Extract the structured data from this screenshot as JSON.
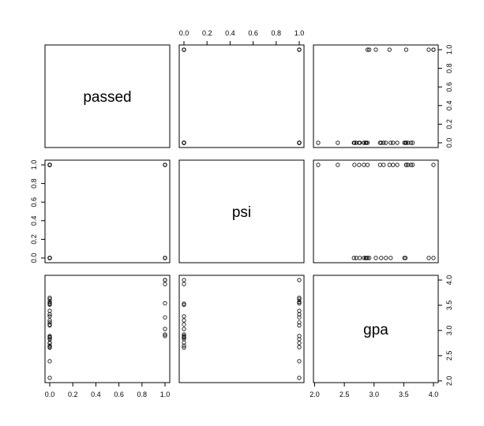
{
  "chart_data": {
    "type": "scatter",
    "kind": "pairs-matrix",
    "variables": [
      "passed",
      "psi",
      "gpa"
    ],
    "ranges": {
      "passed": [
        0,
        1
      ],
      "psi": [
        0,
        1
      ],
      "gpa": [
        2.06,
        4.0
      ]
    },
    "ticks": {
      "passed": [
        "0.0",
        "0.2",
        "0.4",
        "0.6",
        "0.8",
        "1.0"
      ],
      "psi": [
        "0.0",
        "0.2",
        "0.4",
        "0.6",
        "0.8",
        "1.0"
      ],
      "gpa": [
        "2.0",
        "2.5",
        "3.0",
        "3.5",
        "4.0"
      ]
    },
    "tick_values": {
      "passed": [
        0,
        0.2,
        0.4,
        0.6,
        0.8,
        1.0
      ],
      "psi": [
        0,
        0.2,
        0.4,
        0.6,
        0.8,
        1.0
      ],
      "gpa": [
        2.0,
        2.5,
        3.0,
        3.5,
        4.0
      ]
    },
    "observations": {
      "passed": [
        0,
        0,
        0,
        0,
        0,
        0,
        0,
        0,
        0,
        0,
        0,
        0,
        0,
        0,
        0,
        0,
        0,
        0,
        0,
        0,
        0,
        0,
        0,
        0,
        0,
        1,
        1,
        1,
        1,
        1,
        1,
        1,
        1
      ],
      "psi": [
        0,
        0,
        0,
        0,
        0,
        0,
        0,
        0,
        0,
        0,
        0,
        0,
        1,
        1,
        1,
        1,
        1,
        1,
        1,
        1,
        1,
        1,
        1,
        1,
        1,
        0,
        0,
        0,
        0,
        1,
        1,
        1,
        1
      ],
      "gpa": [
        2.66,
        2.7,
        2.76,
        2.83,
        2.86,
        2.87,
        2.89,
        3.12,
        3.2,
        3.28,
        3.51,
        3.53,
        2.06,
        2.39,
        2.67,
        2.75,
        2.83,
        3.1,
        3.16,
        3.32,
        3.39,
        3.54,
        3.57,
        3.62,
        3.65,
        2.92,
        3.03,
        3.92,
        4.0,
        2.89,
        3.26,
        3.54,
        4.0
      ]
    }
  }
}
